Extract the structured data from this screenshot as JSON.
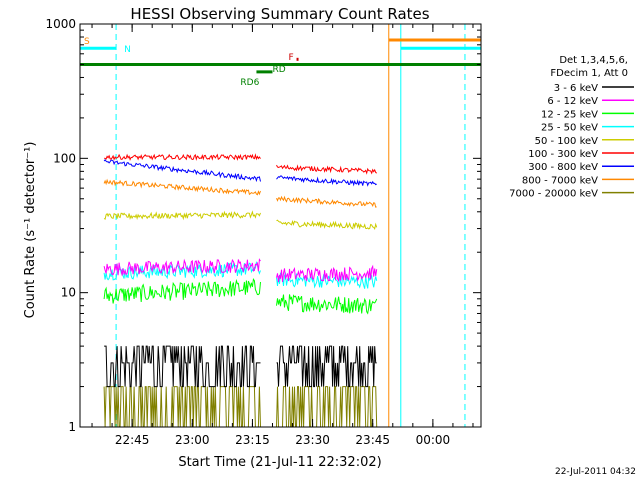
{
  "chart_data": {
    "type": "line",
    "title": "HESSI Observing Summary Count Rates",
    "xlabel": "Start Time (21-Jul-11 22:32:02)",
    "ylabel": "Count Rate (s⁻¹ detector⁻¹)",
    "y_scale": "log",
    "ylim": [
      1,
      1000
    ],
    "xlim_minutes_after_22_32_02": [
      0,
      100
    ],
    "x_ticks": [
      {
        "label": "22:45",
        "t": 13
      },
      {
        "label": "23:00",
        "t": 28
      },
      {
        "label": "23:15",
        "t": 43
      },
      {
        "label": "23:30",
        "t": 58
      },
      {
        "label": "23:45",
        "t": 73
      },
      {
        "label": "00:00",
        "t": 88
      }
    ],
    "y_ticks": [
      {
        "label": "1",
        "v": 1
      },
      {
        "label": "10",
        "v": 10
      },
      {
        "label": "100",
        "v": 100
      },
      {
        "label": "1000",
        "v": 1000
      }
    ],
    "legend_header": [
      "Det 1,3,4,5,6,",
      "FDecim 1, Att 0"
    ],
    "legend_position": "right",
    "series": [
      {
        "name": "3 - 6 keV",
        "color": "#000000",
        "seg1": [
          3.2,
          3.8
        ],
        "seg2": [
          3.0,
          3.6
        ],
        "noise": 0.45
      },
      {
        "name": "6 - 12 keV",
        "color": "#ff00ff",
        "seg1": [
          15,
          16
        ],
        "seg2": [
          13.5,
          14
        ],
        "noise": 0.12
      },
      {
        "name": "12 - 25 keV",
        "color": "#00ff00",
        "seg1": [
          9.5,
          11
        ],
        "seg2": [
          8.5,
          8
        ],
        "noise": 0.15
      },
      {
        "name": "25 - 50 keV",
        "color": "#00ffff",
        "seg1": [
          14,
          15
        ],
        "seg2": [
          12.5,
          12
        ],
        "noise": 0.12
      },
      {
        "name": "50 - 100 keV",
        "color": "#cccc00",
        "seg1": [
          37,
          38
        ],
        "seg2": [
          33,
          31
        ],
        "noise": 0.05
      },
      {
        "name": "100 - 300 keV",
        "color": "#ff0000",
        "seg1": [
          102,
          102
        ],
        "seg2": [
          86,
          80
        ],
        "noise": 0.04
      },
      {
        "name": "300 - 800 keV",
        "color": "#0000ff",
        "seg1": [
          95,
          70
        ],
        "seg2": [
          72,
          64
        ],
        "noise": 0.04
      },
      {
        "name": "800 - 7000 keV",
        "color": "#ff8800",
        "seg1": [
          67,
          55
        ],
        "seg2": [
          50,
          45
        ],
        "noise": 0.04
      },
      {
        "name": "7000 - 20000 keV",
        "color": "#808000",
        "seg1": [
          1.5,
          1.5
        ],
        "seg2": [
          1.5,
          1.5
        ],
        "noise": 0.5
      }
    ],
    "data_intervals_t": [
      [
        6,
        45
      ],
      [
        49,
        74
      ]
    ],
    "flag_bars": [
      {
        "label": "S",
        "color": "#ff8800",
        "y_value": 760,
        "spans_t": [
          [
            77,
            100
          ]
        ]
      },
      {
        "label": "N",
        "color": "#00ffff",
        "y_value": 660,
        "spans_t": [
          [
            0,
            9
          ],
          [
            80,
            100
          ]
        ]
      },
      {
        "label": "",
        "color": "#008000",
        "y_value": 500,
        "spans_t": [
          [
            0,
            100
          ]
        ]
      },
      {
        "label": "RD6",
        "color": "#008000",
        "y_value": 440,
        "spans_t": [
          [
            44,
            48
          ]
        ]
      },
      {
        "label": "RD",
        "color": "#008000",
        "y_value": 470,
        "spans_t": []
      },
      {
        "label": "F",
        "color": "#cc0000",
        "y_value": 580,
        "spans_t": []
      }
    ],
    "orange_lines_t": [
      77,
      100
    ],
    "cyan_dashed_lines_t": [
      0,
      9,
      96
    ],
    "footer_date": "22-Jul-2011 04:32"
  }
}
